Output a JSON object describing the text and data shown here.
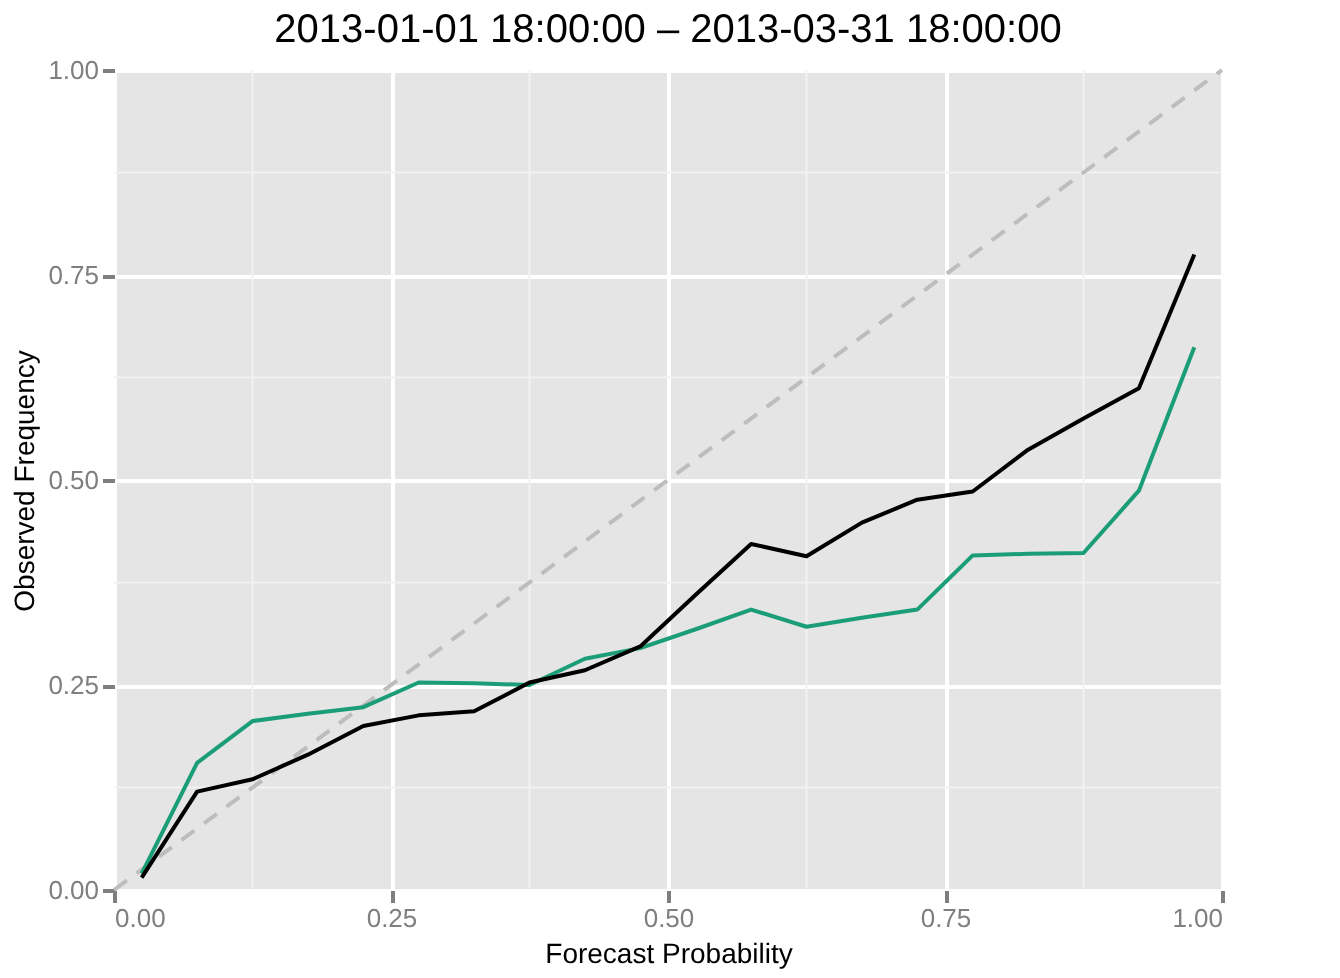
{
  "chart_data": {
    "type": "line",
    "title": "2013-01-01 18:00:00 – 2013-03-31 18:00:00",
    "xlabel": "Forecast Probability",
    "ylabel": "Observed Frequency",
    "xlim": [
      0,
      1
    ],
    "ylim": [
      0,
      1
    ],
    "xticks": [
      {
        "value": 0,
        "label": "0.00"
      },
      {
        "value": 0.25,
        "label": "0.25"
      },
      {
        "value": 0.5,
        "label": "0.50"
      },
      {
        "value": 0.75,
        "label": "0.75"
      },
      {
        "value": 1,
        "label": "1.00"
      }
    ],
    "yticks": [
      {
        "value": 0,
        "label": "0.00"
      },
      {
        "value": 0.25,
        "label": "0.25"
      },
      {
        "value": 0.5,
        "label": "0.50"
      },
      {
        "value": 0.75,
        "label": "0.75"
      },
      {
        "value": 1,
        "label": "1.00"
      }
    ],
    "grid": true,
    "x": [
      0.025,
      0.075,
      0.125,
      0.175,
      0.225,
      0.275,
      0.325,
      0.375,
      0.425,
      0.475,
      0.525,
      0.575,
      0.625,
      0.675,
      0.725,
      0.775,
      0.825,
      0.875,
      0.925,
      0.975
    ],
    "series": [
      {
        "x": [
          0,
          1
        ],
        "values": [
          0,
          1
        ],
        "color": "#bdbdbd",
        "line_style": "dashed"
      },
      {
        "color": "#1b9e77",
        "values": [
          0.02,
          0.155,
          0.206,
          0.215,
          0.223,
          0.253,
          0.252,
          0.25,
          0.282,
          0.295,
          0.318,
          0.342,
          0.321,
          0.332,
          0.342,
          0.408,
          0.41,
          0.411,
          0.487,
          0.662
        ]
      },
      {
        "color": "#000000",
        "values": [
          0.015,
          0.12,
          0.135,
          0.165,
          0.2,
          0.213,
          0.218,
          0.253,
          0.268,
          0.297,
          0.36,
          0.422,
          0.407,
          0.448,
          0.476,
          0.486,
          0.537,
          0.575,
          0.612,
          0.775
        ]
      }
    ]
  }
}
